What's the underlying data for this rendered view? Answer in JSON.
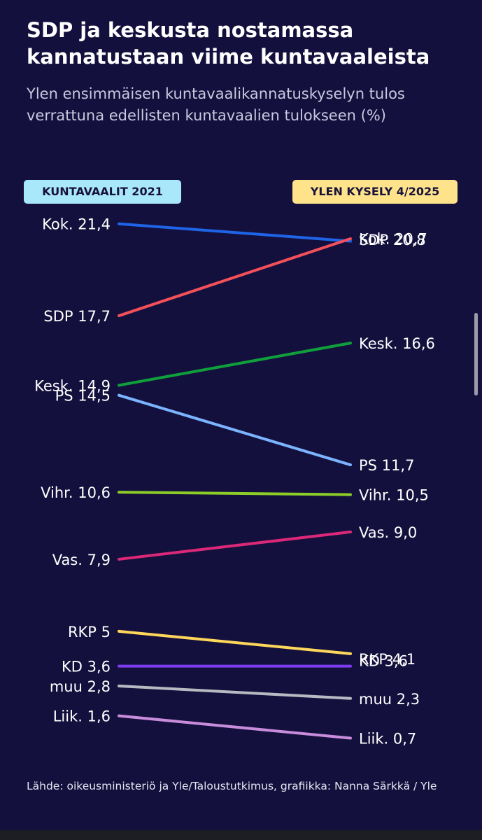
{
  "header": {
    "title": "SDP ja keskusta nostamassa kannatustaan viime kuntavaaleista",
    "subtitle": "Ylen ensimmäisen kuntavaalikannatuskyselyn tulos verrattuna edellisten kuntavaalien tulokseen (%)"
  },
  "colors": {
    "background": "#14103d",
    "left_badge": "#a9e8fa",
    "right_badge": "#ffe38a"
  },
  "chart_data": {
    "type": "slope",
    "title": "SDP ja keskusta nostamassa kannatustaan viime kuntavaaleista",
    "subtitle": "Ylen ensimmäisen kuntavaalikannatuskyselyn tulos verrattuna edellisten kuntavaalien tulokseen (%)",
    "left_column": "KUNTAVAALIT 2021",
    "right_column": "YLEN KYSELY 4/2025",
    "unit": "%",
    "series": [
      {
        "name": "Kok.",
        "left": 21.4,
        "right": 20.7,
        "left_label": "Kok. 21,4",
        "right_label": "Kok. 20,7",
        "color": "#1e64e6"
      },
      {
        "name": "SDP",
        "left": 17.7,
        "right": 20.8,
        "left_label": "SDP 17,7",
        "right_label": "SDP 20,8",
        "color": "#f4505a"
      },
      {
        "name": "Kesk.",
        "left": 14.9,
        "right": 16.6,
        "left_label": "Kesk. 14,9",
        "right_label": "Kesk. 16,6",
        "color": "#0fa03c"
      },
      {
        "name": "PS",
        "left": 14.5,
        "right": 11.7,
        "left_label": "PS 14,5",
        "right_label": "PS 11,7",
        "color": "#7bb4ff"
      },
      {
        "name": "Vihr.",
        "left": 10.6,
        "right": 10.5,
        "left_label": "Vihr. 10,6",
        "right_label": "Vihr. 10,5",
        "color": "#8ccd28"
      },
      {
        "name": "Vas.",
        "left": 7.9,
        "right": 9.0,
        "left_label": "Vas. 7,9",
        "right_label": "Vas. 9,0",
        "color": "#dc2878"
      },
      {
        "name": "RKP",
        "left": 5,
        "right": 4.1,
        "left_label": "RKP 5",
        "right_label": "RKP 4,1",
        "color": "#ffd75a"
      },
      {
        "name": "KD",
        "left": 3.6,
        "right": 3.6,
        "left_label": "KD 3,6",
        "right_label": "KD 3,6",
        "color": "#7d3cf0"
      },
      {
        "name": "muu",
        "left": 2.8,
        "right": 2.3,
        "left_label": "muu 2,8",
        "right_label": "muu 2,3",
        "color": "#b9b9c3"
      },
      {
        "name": "Liik.",
        "left": 1.6,
        "right": 0.7,
        "left_label": "Liik. 1,6",
        "right_label": "Liik. 0,7",
        "color": "#c88cdc"
      }
    ]
  },
  "footer": {
    "source": "Lähde: oikeusministeriö ja Yle/Taloustutkimus, grafiikka: Nanna Särkkä / Yle"
  }
}
